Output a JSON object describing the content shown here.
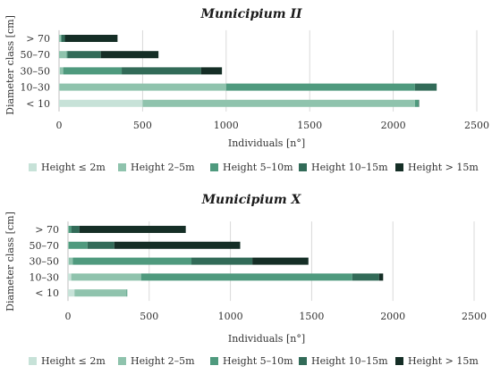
{
  "chart_data": [
    {
      "type": "bar",
      "orientation": "horizontal",
      "stacked": true,
      "title": "Municipium II",
      "xlabel": "Individuals [n°]",
      "ylabel": "Diameter class [cm]",
      "categories": [
        "< 10",
        "10–30",
        "30–50",
        "50–70",
        "> 70"
      ],
      "xlim": [
        0,
        2500
      ],
      "xticks": [
        "0",
        "500",
        "1000",
        "1500",
        "2000",
        "2500"
      ],
      "grid": true,
      "legend_position": "bottom",
      "series": [
        {
          "name": "Height ≤ 2m",
          "color": "#c7e2d8",
          "values": [
            500,
            2,
            5,
            0,
            0
          ]
        },
        {
          "name": "Height 2–5m",
          "color": "#8fc3ad",
          "values": [
            1630,
            998,
            20,
            45,
            10
          ]
        },
        {
          "name": "Height 5–10m",
          "color": "#4f9a7e",
          "values": [
            20,
            1130,
            350,
            5,
            5
          ]
        },
        {
          "name": "Height 10–15m",
          "color": "#326b58",
          "values": [
            5,
            130,
            475,
            200,
            20
          ]
        },
        {
          "name": "Height > 15m",
          "color": "#152e26",
          "values": [
            0,
            0,
            125,
            345,
            315
          ]
        }
      ]
    },
    {
      "type": "bar",
      "orientation": "horizontal",
      "stacked": true,
      "title": "Municipium X",
      "xlabel": "Individuals [n°]",
      "ylabel": "Diameter class [cm]",
      "categories": [
        "< 10",
        "10–30",
        "30–50",
        "50–70",
        "> 70"
      ],
      "xlim": [
        0,
        2500
      ],
      "xticks": [
        "0",
        "500",
        "1000",
        "1500",
        "2000",
        "2500"
      ],
      "grid": true,
      "legend_position": "bottom",
      "series": [
        {
          "name": "Height ≤ 2m",
          "color": "#c7e2d8",
          "values": [
            40,
            20,
            5,
            0,
            0
          ]
        },
        {
          "name": "Height 2–5m",
          "color": "#8fc3ad",
          "values": [
            320,
            430,
            25,
            5,
            5
          ]
        },
        {
          "name": "Height 5–10m",
          "color": "#4f9a7e",
          "values": [
            5,
            1300,
            730,
            115,
            15
          ]
        },
        {
          "name": "Height 10–15m",
          "color": "#326b58",
          "values": [
            0,
            165,
            375,
            165,
            50
          ]
        },
        {
          "name": "Height > 15m",
          "color": "#152e26",
          "values": [
            0,
            25,
            345,
            775,
            655
          ]
        }
      ]
    }
  ]
}
